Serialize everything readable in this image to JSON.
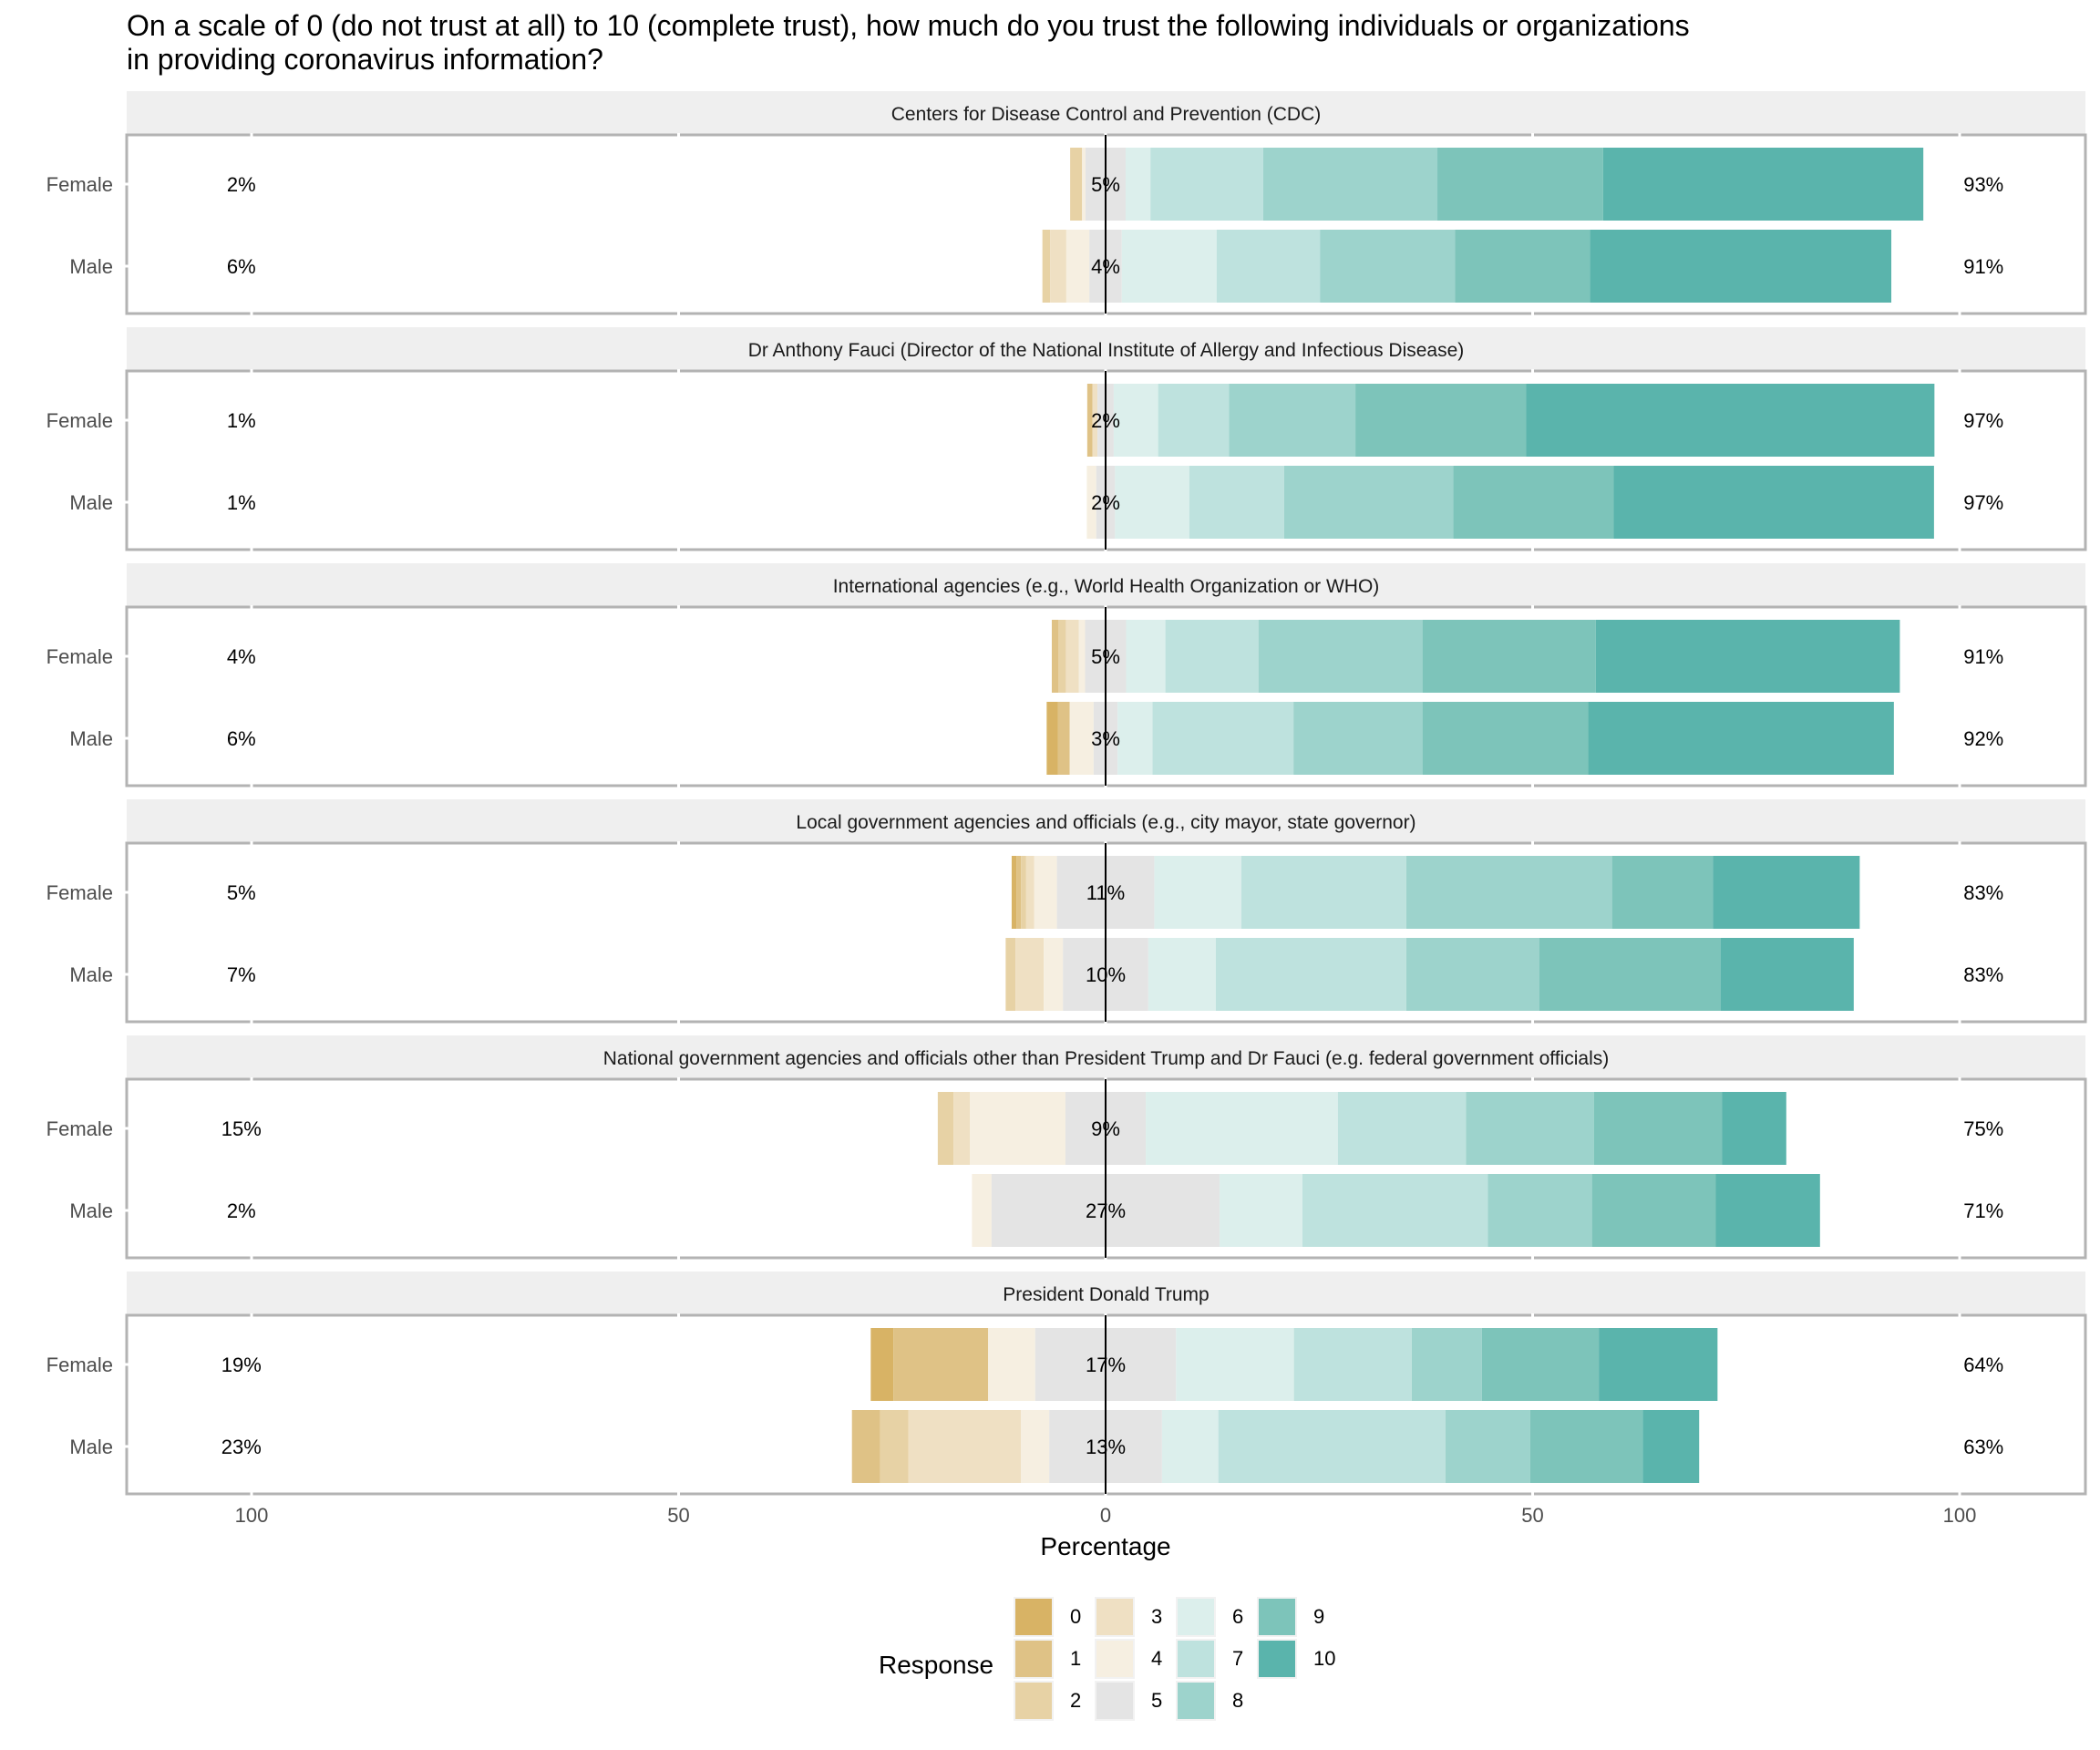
{
  "chart_data": {
    "type": "bar",
    "subtype": "diverging-stacked-bar",
    "title": "On a scale of 0 (do not trust at all) to 10 (complete trust), how much do you trust the following individuals or organizations\nin providing coronavirus information?",
    "xlabel": "Percentage",
    "ylabel": "",
    "xlim": [
      -115,
      115
    ],
    "x_ticks": [
      -100,
      -50,
      0,
      50,
      100
    ],
    "x_tick_labels": [
      "100",
      "50",
      "0",
      "50",
      "100"
    ],
    "grid": false,
    "legend": {
      "title": "Response",
      "placement": "bottom",
      "entries": [
        "0",
        "1",
        "2",
        "3",
        "4",
        "5",
        "6",
        "7",
        "8",
        "9",
        "10"
      ]
    },
    "colors": {
      "0": "#d8b365",
      "1": "#dfc286",
      "2": "#e7d2a5",
      "3": "#efe0c3",
      "4": "#f6efe1",
      "5": "#e4e4e4",
      "6": "#dcefec",
      "7": "#bee2de",
      "8": "#9dd3cc",
      "9": "#7dc4ba",
      "10": "#5ab4ac"
    },
    "categories": [
      "0",
      "1",
      "2",
      "3",
      "4",
      "5",
      "6",
      "7",
      "8",
      "9",
      "10"
    ],
    "groups": [
      "Female",
      "Male"
    ],
    "facets": [
      {
        "label": "Centers for Disease Control and Prevention (CDC)",
        "rows": [
          {
            "group": "Female",
            "values": [
              0,
              0,
              1.4,
              0,
              0.4,
              4.7,
              2.9,
              13.2,
              20.4,
              19.4,
              37.5
            ],
            "low_label": "2%",
            "neutral_label": "5%",
            "high_label": "93%"
          },
          {
            "group": "Male",
            "values": [
              0,
              0,
              0.9,
              1.9,
              2.7,
              3.8,
              11.1,
              12.1,
              15.8,
              15.8,
              35.3
            ],
            "low_label": "6%",
            "neutral_label": "4%",
            "high_label": "91%"
          }
        ]
      },
      {
        "label": "Dr Anthony Fauci (Director of the National Institute of Allergy and Infectious Disease)",
        "rows": [
          {
            "group": "Female",
            "values": [
              0,
              0.6,
              0,
              0.6,
              0,
              1.9,
              5.2,
              8.3,
              14.8,
              20.0,
              47.8
            ],
            "low_label": "1%",
            "neutral_label": "2%",
            "high_label": "97%"
          },
          {
            "group": "Male",
            "values": [
              0,
              0,
              0,
              0,
              1.1,
              2.2,
              8.7,
              11.1,
              19.8,
              18.8,
              37.5
            ],
            "low_label": "1%",
            "neutral_label": "2%",
            "high_label": "97%"
          }
        ]
      },
      {
        "label": "International agencies (e.g., World Health Organization or WHO)",
        "rows": [
          {
            "group": "Female",
            "values": [
              0,
              0.75,
              0.9,
              1.5,
              0.75,
              4.8,
              4.6,
              10.9,
              19.2,
              20.3,
              35.6
            ],
            "low_label": "4%",
            "neutral_label": "5%",
            "high_label": "91%"
          },
          {
            "group": "Male",
            "values": [
              1.3,
              1.4,
              0,
              0,
              2.8,
              2.8,
              4.1,
              16.5,
              15.1,
              19.4,
              35.8
            ],
            "low_label": "6%",
            "neutral_label": "3%",
            "high_label": "92%"
          }
        ]
      },
      {
        "label": "Local government agencies and officials (e.g., city mayor, state governor)",
        "rows": [
          {
            "group": "Female",
            "values": [
              0.55,
              0.55,
              0.6,
              0.95,
              2.65,
              11.4,
              10.2,
              19.3,
              24.1,
              11.8,
              17.2
            ],
            "low_label": "5%",
            "neutral_label": "11%",
            "high_label": "83%"
          },
          {
            "group": "Male",
            "values": [
              0,
              0,
              1.15,
              3.3,
              2.25,
              10.0,
              7.9,
              22.3,
              15.6,
              21.2,
              15.6
            ],
            "low_label": "7%",
            "neutral_label": "10%",
            "high_label": "83%"
          }
        ]
      },
      {
        "label": "National government agencies and officials other than President Trump and Dr Fauci (e.g. federal government officials)",
        "rows": [
          {
            "group": "Female",
            "values": [
              0,
              0,
              1.85,
              1.9,
              11.2,
              9.4,
              22.5,
              15.0,
              15.0,
              15.0,
              7.5
            ],
            "low_label": "15%",
            "neutral_label": "9%",
            "high_label": "75%"
          },
          {
            "group": "Male",
            "values": [
              0,
              0,
              0,
              0,
              2.3,
              26.7,
              9.7,
              21.7,
              12.2,
              14.5,
              12.2
            ],
            "low_label": "2%",
            "neutral_label": "27%",
            "high_label": "71%"
          }
        ]
      },
      {
        "label": "President Donald Trump",
        "rows": [
          {
            "group": "Female",
            "values": [
              2.65,
              11.1,
              0,
              0,
              5.5,
              16.5,
              13.8,
              13.8,
              8.2,
              13.7,
              13.9
            ],
            "low_label": "19%",
            "neutral_label": "17%",
            "high_label": "64%"
          },
          {
            "group": "Male",
            "values": [
              0,
              3.3,
              3.3,
              13.2,
              3.3,
              13.2,
              6.6,
              26.6,
              9.9,
              13.2,
              6.6
            ],
            "low_label": "23%",
            "neutral_label": "13%",
            "high_label": "63%"
          }
        ]
      }
    ]
  }
}
